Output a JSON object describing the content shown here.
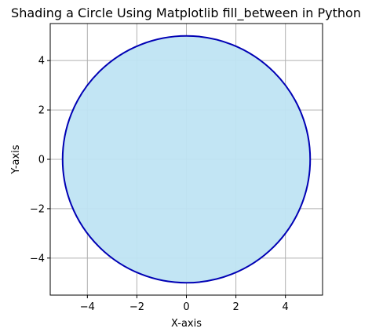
{
  "chart_data": {
    "type": "area",
    "title": "Shading a Circle Using Matplotlib fill_between in Python",
    "xlabel": "X-axis",
    "ylabel": "Y-axis",
    "xlim": [
      -5.5,
      5.5
    ],
    "ylim": [
      -5.5,
      5.5
    ],
    "grid": true,
    "aspect": "equal",
    "x_ticks": [
      -4,
      -2,
      0,
      2,
      4
    ],
    "y_ticks": [
      -4,
      -2,
      0,
      2,
      4
    ],
    "x_tick_labels": [
      "−4",
      "−2",
      "0",
      "2",
      "4"
    ],
    "y_tick_labels": [
      "−4",
      "−2",
      "0",
      "2",
      "4"
    ],
    "series": [
      {
        "shape": "circle",
        "center": [
          0,
          0
        ],
        "radius": 5,
        "fill_color": "#bfe4f3",
        "edge_color": "#0000b4"
      }
    ]
  },
  "colors": {
    "background": "#ffffff",
    "grid": "#b0b0b0",
    "axes": "#000000"
  }
}
